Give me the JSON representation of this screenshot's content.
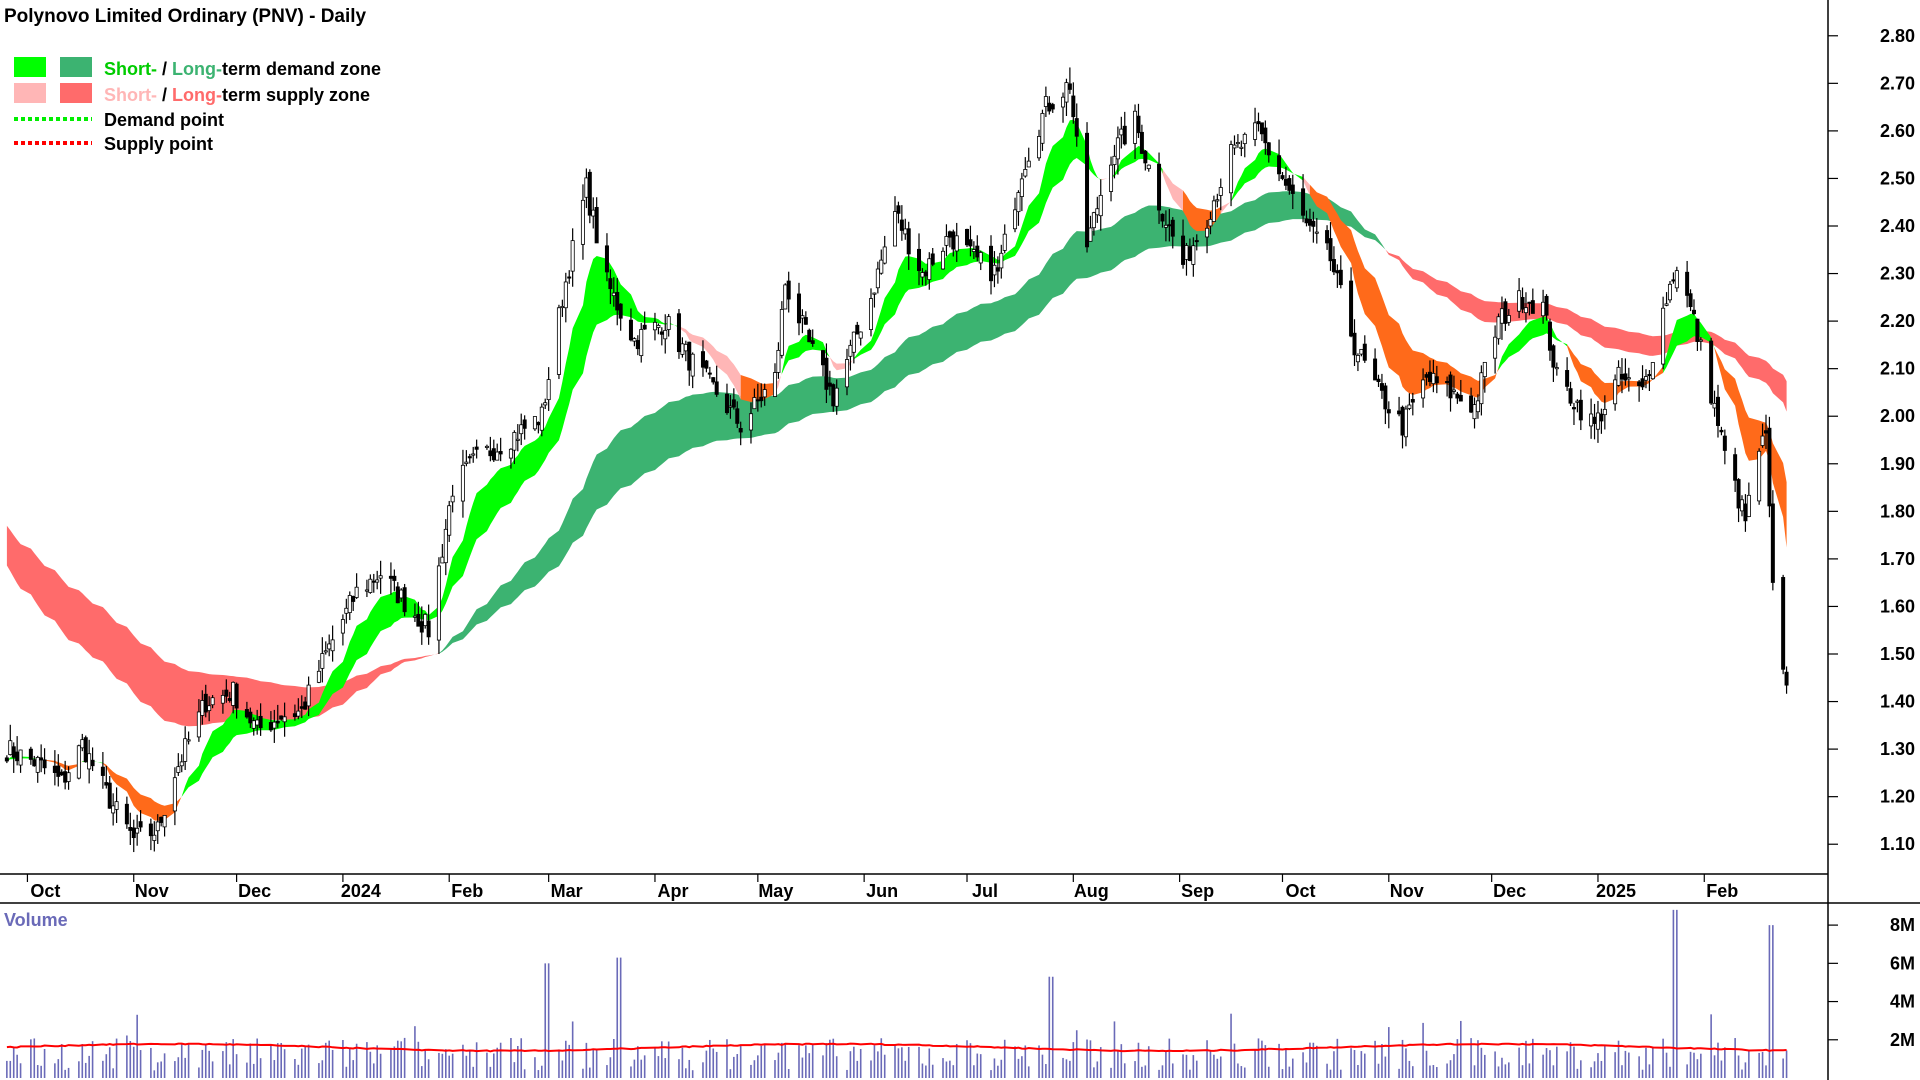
{
  "title": "Polynovo Limited Ordinary (PNV) - Daily",
  "legend": {
    "row1": {
      "a": "Short-",
      "sep": " / ",
      "b": "Long-",
      "c": "term demand zone"
    },
    "row2": {
      "a": "Short-",
      "sep": " / ",
      "b": "Long-",
      "c": "term supply zone"
    },
    "row3": "Demand point",
    "row4": "Supply point"
  },
  "volume_label": "Volume",
  "colors": {
    "short_demand": "#00ff00",
    "long_demand": "#3cb371",
    "short_supply": "#ffb6b6",
    "long_supply": "#ff6b6b",
    "orange_zone": "#ff6a1a",
    "demand_point": "#00ee00",
    "supply_point": "#ff0000",
    "volume_bar": "#6a6ab8",
    "volume_ma": "#ff0000"
  },
  "chart_data": [
    {
      "type": "candlestick",
      "title": "Polynovo Limited Ordinary (PNV) - Daily",
      "y_axis_side": "right",
      "ylim": [
        1.05,
        2.85
      ],
      "y_ticks": [
        "1.10",
        "1.20",
        "1.30",
        "1.40",
        "1.50",
        "1.60",
        "1.70",
        "1.80",
        "1.90",
        "2.00",
        "2.10",
        "2.20",
        "2.30",
        "2.40",
        "2.50",
        "2.60",
        "2.70",
        "2.80"
      ],
      "x_ticks": [
        "Oct",
        "Nov",
        "Dec",
        "2024",
        "Feb",
        "Mar",
        "Apr",
        "May",
        "Jun",
        "Jul",
        "Aug",
        "Sep",
        "Oct",
        "Nov",
        "Dec",
        "2025",
        "Feb"
      ],
      "price_path": [
        {
          "date": "2023-09-25",
          "close": 1.3
        },
        {
          "date": "2023-10-04",
          "close": 1.27
        },
        {
          "date": "2023-10-11",
          "close": 1.23
        },
        {
          "date": "2023-10-17",
          "close": 1.31
        },
        {
          "date": "2023-10-26",
          "close": 1.18
        },
        {
          "date": "2023-11-01",
          "close": 1.11
        },
        {
          "date": "2023-11-08",
          "close": 1.13
        },
        {
          "date": "2023-11-13",
          "close": 1.25
        },
        {
          "date": "2023-11-22",
          "close": 1.4
        },
        {
          "date": "2023-11-30",
          "close": 1.42
        },
        {
          "date": "2023-12-07",
          "close": 1.34
        },
        {
          "date": "2023-12-14",
          "close": 1.37
        },
        {
          "date": "2023-12-20",
          "close": 1.38
        },
        {
          "date": "2023-12-27",
          "close": 1.5
        },
        {
          "date": "2024-01-05",
          "close": 1.63
        },
        {
          "date": "2024-01-12",
          "close": 1.67
        },
        {
          "date": "2024-01-19",
          "close": 1.61
        },
        {
          "date": "2024-01-26",
          "close": 1.55
        },
        {
          "date": "2024-02-02",
          "close": 1.85
        },
        {
          "date": "2024-02-09",
          "close": 1.91
        },
        {
          "date": "2024-02-20",
          "close": 1.96
        },
        {
          "date": "2024-02-28",
          "close": 2.0
        },
        {
          "date": "2024-03-05",
          "close": 2.25
        },
        {
          "date": "2024-03-12",
          "close": 2.48
        },
        {
          "date": "2024-03-18",
          "close": 2.28
        },
        {
          "date": "2024-03-26",
          "close": 2.16
        },
        {
          "date": "2024-04-04",
          "close": 2.2
        },
        {
          "date": "2024-04-11",
          "close": 2.12
        },
        {
          "date": "2024-04-19",
          "close": 2.05
        },
        {
          "date": "2024-04-26",
          "close": 1.98
        },
        {
          "date": "2024-05-06",
          "close": 2.08
        },
        {
          "date": "2024-05-09",
          "close": 2.28
        },
        {
          "date": "2024-05-16",
          "close": 2.15
        },
        {
          "date": "2024-05-23",
          "close": 2.04
        },
        {
          "date": "2024-06-03",
          "close": 2.25
        },
        {
          "date": "2024-06-10",
          "close": 2.43
        },
        {
          "date": "2024-06-18",
          "close": 2.3
        },
        {
          "date": "2024-06-26",
          "close": 2.38
        },
        {
          "date": "2024-07-03",
          "close": 2.33
        },
        {
          "date": "2024-07-10",
          "close": 2.3
        },
        {
          "date": "2024-07-17",
          "close": 2.52
        },
        {
          "date": "2024-07-24",
          "close": 2.65
        },
        {
          "date": "2024-07-31",
          "close": 2.7
        },
        {
          "date": "2024-08-05",
          "close": 2.36
        },
        {
          "date": "2024-08-12",
          "close": 2.55
        },
        {
          "date": "2024-08-19",
          "close": 2.62
        },
        {
          "date": "2024-08-26",
          "close": 2.45
        },
        {
          "date": "2024-09-02",
          "close": 2.32
        },
        {
          "date": "2024-09-09",
          "close": 2.42
        },
        {
          "date": "2024-09-16",
          "close": 2.55
        },
        {
          "date": "2024-09-24",
          "close": 2.6
        },
        {
          "date": "2024-10-01",
          "close": 2.5
        },
        {
          "date": "2024-10-08",
          "close": 2.4
        },
        {
          "date": "2024-10-15",
          "close": 2.33
        },
        {
          "date": "2024-10-22",
          "close": 2.15
        },
        {
          "date": "2024-10-29",
          "close": 2.05
        },
        {
          "date": "2024-11-05",
          "close": 1.98
        },
        {
          "date": "2024-11-12",
          "close": 2.08
        },
        {
          "date": "2024-11-19",
          "close": 2.05
        },
        {
          "date": "2024-11-26",
          "close": 2.02
        },
        {
          "date": "2024-12-03",
          "close": 2.2
        },
        {
          "date": "2024-12-10",
          "close": 2.25
        },
        {
          "date": "2024-12-16",
          "close": 2.23
        },
        {
          "date": "2024-12-20",
          "close": 2.08
        },
        {
          "date": "2024-12-31",
          "close": 1.98
        },
        {
          "date": "2025-01-07",
          "close": 2.08
        },
        {
          "date": "2025-01-14",
          "close": 2.05
        },
        {
          "date": "2025-01-21",
          "close": 2.25
        },
        {
          "date": "2025-01-24",
          "close": 2.32
        },
        {
          "date": "2025-01-29",
          "close": 2.2
        },
        {
          "date": "2025-02-03",
          "close": 2.05
        },
        {
          "date": "2025-02-07",
          "close": 1.92
        },
        {
          "date": "2025-02-13",
          "close": 1.78
        },
        {
          "date": "2025-02-17",
          "close": 1.93
        },
        {
          "date": "2025-02-19",
          "close": 1.95
        },
        {
          "date": "2025-02-20",
          "close": 1.8
        },
        {
          "date": "2025-02-21",
          "close": 1.63
        },
        {
          "date": "2025-02-24",
          "close": 1.45
        }
      ]
    },
    {
      "type": "bar",
      "title": "Volume",
      "y_axis_side": "right",
      "ylim": [
        0,
        9000000
      ],
      "y_ticks": [
        "2M",
        "4M",
        "6M",
        "8M"
      ],
      "moving_average_level": 1600000,
      "notable_spikes": [
        {
          "date": "2024-03-01",
          "value": 6000000
        },
        {
          "date": "2024-03-22",
          "value": 6300000
        },
        {
          "date": "2024-07-26",
          "value": 5300000
        },
        {
          "date": "2025-01-24",
          "value": 8800000
        },
        {
          "date": "2025-02-21",
          "value": 8000000
        }
      ]
    }
  ]
}
